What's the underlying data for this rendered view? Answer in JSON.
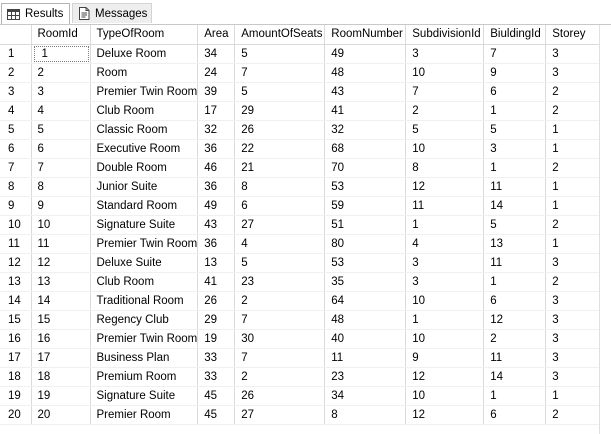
{
  "tabs": [
    {
      "label": "Results",
      "icon": "grid-icon",
      "active": true
    },
    {
      "label": "Messages",
      "icon": "messages-icon",
      "active": false
    }
  ],
  "grid": {
    "columns": [
      "RoomId",
      "TypeOfRoom",
      "Area",
      "AmountOfSeats",
      "RoomNumber",
      "SubdivisionId",
      "BiuldingId",
      "Storey"
    ],
    "rows": [
      [
        "1",
        "1",
        "Deluxe Room",
        "34",
        "5",
        "49",
        "3",
        "7",
        "3"
      ],
      [
        "2",
        "2",
        "Room",
        "24",
        "7",
        "48",
        "10",
        "9",
        "3"
      ],
      [
        "3",
        "3",
        "Premier Twin Room",
        "39",
        "5",
        "43",
        "7",
        "6",
        "2"
      ],
      [
        "4",
        "4",
        "Club Room",
        "17",
        "29",
        "41",
        "2",
        "1",
        "2"
      ],
      [
        "5",
        "5",
        "Classic Room",
        "32",
        "26",
        "32",
        "5",
        "5",
        "1"
      ],
      [
        "6",
        "6",
        "Executive Room",
        "36",
        "22",
        "68",
        "10",
        "3",
        "1"
      ],
      [
        "7",
        "7",
        "Double Room",
        "46",
        "21",
        "70",
        "8",
        "1",
        "2"
      ],
      [
        "8",
        "8",
        "Junior Suite",
        "36",
        "8",
        "53",
        "12",
        "11",
        "1"
      ],
      [
        "9",
        "9",
        "Standard Room",
        "49",
        "6",
        "59",
        "11",
        "14",
        "1"
      ],
      [
        "10",
        "10",
        "Signature Suite",
        "43",
        "27",
        "51",
        "1",
        "5",
        "2"
      ],
      [
        "11",
        "11",
        "Premier Twin Room",
        "36",
        "4",
        "80",
        "4",
        "13",
        "1"
      ],
      [
        "12",
        "12",
        "Deluxe Suite",
        "13",
        "5",
        "53",
        "3",
        "11",
        "3"
      ],
      [
        "13",
        "13",
        "Club Room",
        "41",
        "23",
        "35",
        "3",
        "1",
        "2"
      ],
      [
        "14",
        "14",
        "Traditional Room",
        "26",
        "2",
        "64",
        "10",
        "6",
        "3"
      ],
      [
        "15",
        "15",
        "Regency Club",
        "29",
        "7",
        "48",
        "1",
        "12",
        "3"
      ],
      [
        "16",
        "16",
        "Premier Twin Room",
        "19",
        "30",
        "40",
        "10",
        "2",
        "3"
      ],
      [
        "17",
        "17",
        "Business Plan",
        "33",
        "7",
        "11",
        "9",
        "11",
        "3"
      ],
      [
        "18",
        "18",
        "Premium Room",
        "33",
        "2",
        "23",
        "12",
        "14",
        "3"
      ],
      [
        "19",
        "19",
        "Signature Suite",
        "45",
        "26",
        "34",
        "10",
        "1",
        "1"
      ],
      [
        "20",
        "20",
        "Premier Room",
        "45",
        "27",
        "8",
        "12",
        "6",
        "2"
      ]
    ]
  }
}
